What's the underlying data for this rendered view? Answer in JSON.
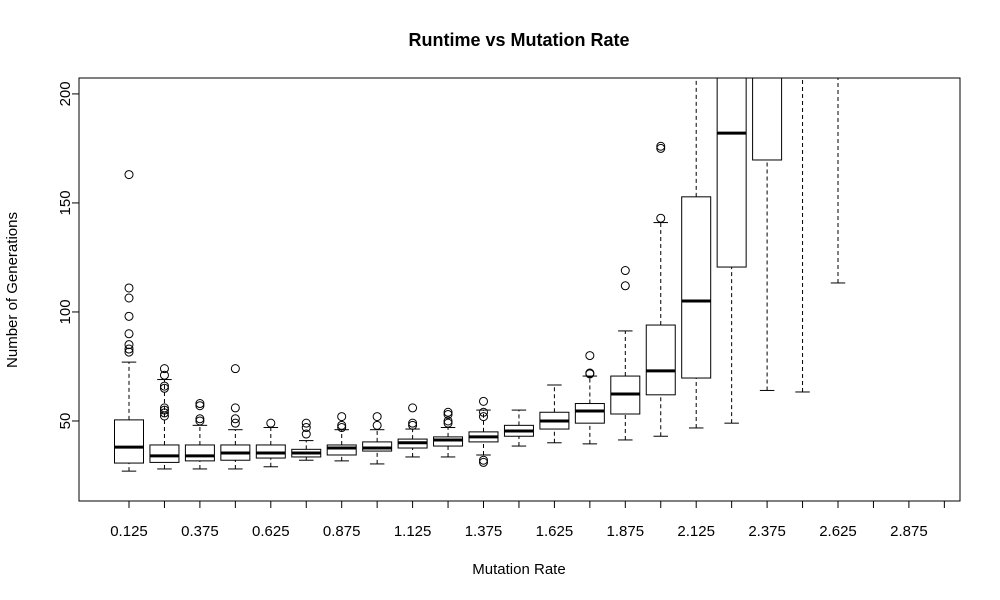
{
  "chart_data": {
    "type": "box",
    "title": "Runtime vs Mutation Rate",
    "x_label": "Mutation Rate",
    "y_label": "Number of Generations",
    "categories": [
      "0.125",
      null,
      "0.375",
      null,
      "0.625",
      null,
      "0.875",
      null,
      "1.125",
      null,
      "1.375",
      null,
      "1.625",
      null,
      "1.875",
      null,
      "2.125",
      null,
      "2.375",
      null,
      "2.625",
      null,
      "2.875",
      null
    ],
    "low": [
      27,
      28,
      28,
      28,
      29,
      32,
      31.7,
      30.3,
      33.5,
      33.5,
      34.4,
      38.5,
      40,
      39.5,
      41.3,
      43,
      46.8,
      49,
      64,
      63.3,
      113.3,
      null,
      null,
      null
    ],
    "q1": [
      30.7,
      31,
      31.7,
      32,
      33,
      33.5,
      34.4,
      36.2,
      37.6,
      38.5,
      40.4,
      43,
      46.3,
      49,
      53.2,
      62,
      69.7,
      120.6,
      169.7,
      null,
      null,
      null,
      null,
      null
    ],
    "median": [
      38,
      34,
      34,
      35.3,
      35.3,
      35.3,
      37.6,
      37.6,
      40,
      41.3,
      42.7,
      45.4,
      50,
      54.6,
      62.4,
      73,
      105,
      182,
      null,
      null,
      null,
      null,
      null,
      null
    ],
    "q3": [
      50.5,
      39,
      39,
      39,
      39,
      37,
      39,
      40.4,
      41.7,
      42.7,
      45,
      48,
      54,
      58,
      70.6,
      94,
      152.8,
      null,
      null,
      null,
      null,
      null,
      null,
      null
    ],
    "high": [
      77,
      69,
      48,
      46,
      47,
      41,
      46,
      46,
      46.3,
      47,
      55,
      55,
      66.5,
      70.6,
      91.3,
      141,
      null,
      null,
      null,
      null,
      null,
      null,
      null,
      null
    ],
    "outliers": [
      [
        163,
        111,
        106.4,
        98,
        90,
        85,
        83,
        81.6
      ],
      [
        74,
        71,
        66,
        65,
        56,
        55,
        53.7,
        52.3
      ],
      [
        58,
        57,
        51,
        50
      ],
      [
        74,
        56,
        51,
        49
      ],
      [
        49
      ],
      [
        49,
        47,
        44
      ],
      [
        52,
        48,
        47
      ],
      [
        52,
        48
      ],
      [
        56,
        49,
        48
      ],
      [
        54,
        53,
        50,
        49
      ],
      [
        59,
        54,
        52,
        32,
        31
      ],
      [],
      [],
      [
        80,
        72,
        71.6
      ],
      [
        119,
        112
      ],
      [
        176,
        175,
        143
      ],
      [],
      [],
      [],
      [],
      [],
      [],
      [],
      []
    ],
    "ylim": [
      13.3,
      207.3
    ],
    "yticks": [
      50,
      100,
      150,
      200
    ],
    "grid": false,
    "color": "#000000"
  }
}
